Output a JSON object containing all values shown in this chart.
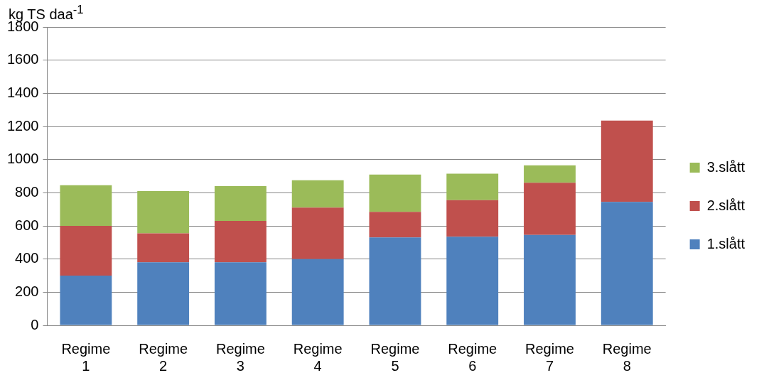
{
  "chart_data": {
    "type": "bar",
    "stacked": true,
    "ylabel": "kg TS daa$^{-1}$",
    "categories": [
      "Regime 1",
      "Regime 2",
      "Regime 3",
      "Regime 4",
      "Regime 5",
      "Regime 6",
      "Regime 7",
      "Regime 8"
    ],
    "series": [
      {
        "name": "1.slått",
        "color": "#4f81bd",
        "values": [
          300,
          380,
          380,
          400,
          530,
          535,
          545,
          745
        ]
      },
      {
        "name": "2.slått",
        "color": "#c0504d",
        "values": [
          300,
          175,
          250,
          310,
          155,
          220,
          315,
          490
        ]
      },
      {
        "name": "3.slått",
        "color": "#9bbb59",
        "values": [
          245,
          255,
          210,
          165,
          225,
          160,
          105,
          null
        ]
      }
    ],
    "ylim": [
      0,
      1800
    ],
    "yticks": [
      0,
      200,
      400,
      600,
      800,
      1000,
      1200,
      1400,
      1600,
      1800
    ],
    "grid": "y",
    "legend": "right"
  }
}
